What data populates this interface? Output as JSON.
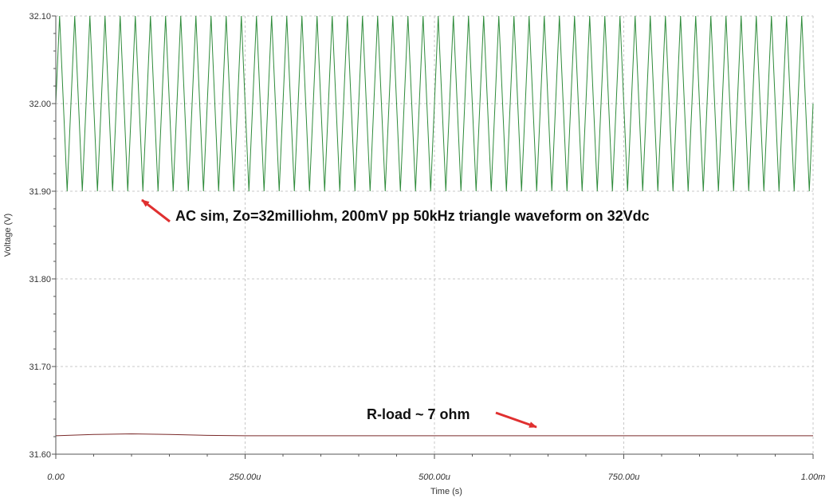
{
  "chart_data": {
    "type": "line",
    "xlabel": "Time (s)",
    "ylabel": "Voltage (V)",
    "xlim": [
      0,
      0.001
    ],
    "ylim": [
      31.6,
      32.1
    ],
    "x_ticks": [
      {
        "value": 0,
        "label": "0.00"
      },
      {
        "value": 0.00025,
        "label": "250.00u"
      },
      {
        "value": 0.0005,
        "label": "500.00u"
      },
      {
        "value": 0.00075,
        "label": "750.00u"
      },
      {
        "value": 0.001,
        "label": "1.00m"
      }
    ],
    "y_ticks": [
      {
        "value": 31.6,
        "label": "31.60"
      },
      {
        "value": 31.7,
        "label": "31.70"
      },
      {
        "value": 31.8,
        "label": "31.80"
      },
      {
        "value": 31.9,
        "label": "31.90"
      },
      {
        "value": 32.0,
        "label": "32.00"
      },
      {
        "value": 32.1,
        "label": "32.10"
      }
    ],
    "grid": true,
    "series": [
      {
        "color": "#2e8b3a",
        "shape": "triangle",
        "frequency_hz": 50000,
        "min": 31.9,
        "max": 32.1,
        "start_value": 32.0
      },
      {
        "color": "#7a2a2a",
        "shape": "flat",
        "x": [
          0,
          5e-05,
          0.0001,
          0.00015,
          0.0002,
          0.00025,
          0.0005,
          0.00075,
          0.001
        ],
        "y": [
          31.621,
          31.6225,
          31.6232,
          31.6225,
          31.6215,
          31.621,
          31.621,
          31.621,
          31.621
        ]
      }
    ],
    "annotations": [
      {
        "text": "AC sim, Zo=32milliohm, 200mV pp 50kHz triangle waveform on 32Vdc",
        "arrow_color": "#e03030"
      },
      {
        "text": "R-load ~ 7 ohm",
        "arrow_color": "#e03030"
      }
    ]
  }
}
